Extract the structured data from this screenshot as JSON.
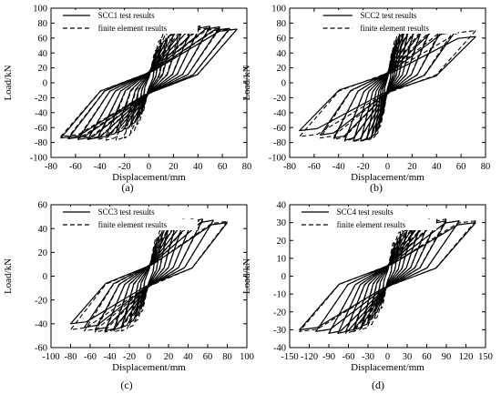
{
  "chart_data": [
    {
      "type": "line",
      "panel_label": "(a)",
      "xlabel": "Displacement/mm",
      "ylabel": "Load/kN",
      "xlim": [
        -80,
        80
      ],
      "ylim": [
        -100,
        100
      ],
      "x_ticks": [
        -80,
        -60,
        -40,
        -20,
        0,
        20,
        40,
        60,
        80
      ],
      "y_ticks": [
        -100,
        -80,
        -60,
        -40,
        -20,
        0,
        20,
        40,
        60,
        80,
        100
      ],
      "legend_position": "top-left",
      "series": [
        {
          "name": "SCC1 test results",
          "style": "solid",
          "peak_x": [
            6,
            10,
            15,
            20,
            27,
            35,
            42,
            50,
            58,
            66,
            72
          ],
          "peak_y": [
            38,
            50,
            58,
            65,
            70,
            74,
            76,
            76,
            75,
            73,
            72
          ],
          "valley_y": [
            -35,
            -48,
            -56,
            -62,
            -67,
            -71,
            -74,
            -76,
            -76,
            -75,
            -74
          ]
        },
        {
          "name": "finite element results",
          "style": "dashed",
          "peak_x": [
            6,
            10,
            15,
            20,
            27,
            35,
            42,
            50,
            58,
            66,
            72
          ],
          "peak_y": [
            44,
            58,
            70,
            78,
            80,
            78,
            76,
            74,
            73,
            72,
            72
          ],
          "valley_y": [
            -42,
            -56,
            -67,
            -74,
            -77,
            -77,
            -76,
            -75,
            -74,
            -73,
            -72
          ]
        }
      ]
    },
    {
      "type": "line",
      "panel_label": "(b)",
      "xlabel": "Displacement/mm",
      "ylabel": "Load/kN",
      "xlim": [
        -80,
        80
      ],
      "ylim": [
        -100,
        100
      ],
      "x_ticks": [
        -80,
        -60,
        -40,
        -20,
        0,
        20,
        40,
        60,
        80
      ],
      "y_ticks": [
        -100,
        -80,
        -60,
        -40,
        -20,
        0,
        20,
        40,
        60,
        80,
        100
      ],
      "legend_position": "top-right",
      "series": [
        {
          "name": "SCC2 test results",
          "style": "solid",
          "peak_x": [
            4,
            7,
            10,
            13,
            17,
            22,
            28,
            35,
            44,
            55,
            72
          ],
          "peak_y": [
            35,
            50,
            60,
            66,
            70,
            72,
            72,
            71,
            70,
            68,
            62
          ],
          "valley_y": [
            -38,
            -55,
            -66,
            -72,
            -76,
            -78,
            -78,
            -77,
            -74,
            -70,
            -64
          ]
        },
        {
          "name": "finite element results",
          "style": "dashed",
          "peak_x": [
            4,
            7,
            10,
            13,
            17,
            22,
            28,
            35,
            44,
            55,
            72
          ],
          "peak_y": [
            42,
            58,
            68,
            72,
            74,
            75,
            74,
            74,
            73,
            72,
            70
          ],
          "valley_y": [
            -44,
            -60,
            -70,
            -75,
            -78,
            -79,
            -79,
            -78,
            -76,
            -74,
            -72
          ]
        }
      ]
    },
    {
      "type": "line",
      "panel_label": "(c)",
      "xlabel": "Displacement/mm",
      "ylabel": "Load/kN",
      "xlim": [
        -100,
        100
      ],
      "ylim": [
        -60,
        60
      ],
      "x_ticks": [
        -100,
        -80,
        -60,
        -40,
        -20,
        0,
        20,
        40,
        60,
        80,
        100
      ],
      "y_ticks": [
        -60,
        -40,
        -20,
        0,
        20,
        40,
        60
      ],
      "legend_position": "top-left",
      "series": [
        {
          "name": "SCC3 test results",
          "style": "solid",
          "peak_x": [
            8,
            14,
            20,
            28,
            36,
            45,
            55,
            66,
            80
          ],
          "peak_y": [
            28,
            36,
            41,
            45,
            47,
            48,
            48,
            47,
            45
          ],
          "valley_y": [
            -26,
            -34,
            -39,
            -43,
            -45,
            -46,
            -45,
            -43,
            -40
          ]
        },
        {
          "name": "finite element results",
          "style": "dashed",
          "peak_x": [
            8,
            14,
            20,
            28,
            36,
            45,
            55,
            66,
            80
          ],
          "peak_y": [
            32,
            40,
            45,
            47,
            48,
            48,
            47,
            47,
            46
          ],
          "valley_y": [
            -30,
            -38,
            -43,
            -46,
            -47,
            -47,
            -47,
            -46,
            -45
          ]
        }
      ]
    },
    {
      "type": "line",
      "panel_label": "(d)",
      "xlabel": "Displacement/mm",
      "ylabel": "Load/kN",
      "xlim": [
        -150,
        150
      ],
      "ylim": [
        -40,
        40
      ],
      "x_ticks": [
        -150,
        -120,
        -90,
        -60,
        -30,
        0,
        30,
        60,
        90,
        120,
        150
      ],
      "y_ticks": [
        -40,
        -30,
        -20,
        -10,
        0,
        10,
        20,
        30,
        40
      ],
      "legend_position": "top-left",
      "series": [
        {
          "name": "SCC4 test results",
          "style": "solid",
          "peak_x": [
            10,
            20,
            30,
            40,
            52,
            64,
            76,
            90,
            110,
            135
          ],
          "peak_y": [
            16,
            22,
            26,
            28,
            30,
            31,
            31,
            31,
            31,
            30
          ],
          "valley_y": [
            -15,
            -21,
            -25,
            -28,
            -30,
            -31,
            -32,
            -32,
            -31,
            -30
          ]
        },
        {
          "name": "finite element results",
          "style": "dashed",
          "peak_x": [
            10,
            20,
            30,
            40,
            52,
            64,
            76,
            90,
            110,
            135
          ],
          "peak_y": [
            19,
            25,
            28,
            30,
            31,
            32,
            32,
            32,
            31,
            31
          ],
          "valley_y": [
            -18,
            -24,
            -28,
            -30,
            -31,
            -32,
            -32,
            -32,
            -31,
            -31
          ]
        }
      ]
    }
  ]
}
